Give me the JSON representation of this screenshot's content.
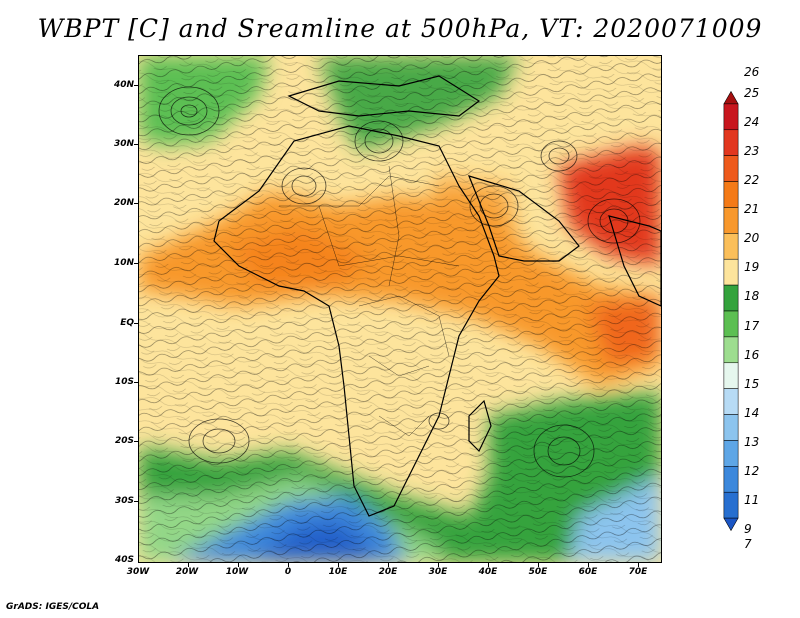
{
  "title": "WBPT [C] and Sreamline at 500hPa, VT: 2020071009",
  "footer": "GrADS: IGES/COLA",
  "lat_labels": [
    "40N",
    "30N",
    "20N",
    "10N",
    "EQ",
    "10S",
    "20S",
    "30S",
    "40S"
  ],
  "lon_labels": [
    "30W",
    "20W",
    "10W",
    "0",
    "10E",
    "20E",
    "30E",
    "40E",
    "50E",
    "60E",
    "70E"
  ],
  "colorbar": {
    "labels": [
      "26",
      "25",
      "24",
      "23",
      "22",
      "21",
      "20",
      "19",
      "18",
      "17",
      "16",
      "15",
      "14",
      "13",
      "12",
      "11",
      "9",
      "7"
    ],
    "colors": [
      "#a50f0f",
      "#c8161e",
      "#e2371f",
      "#ee5a1c",
      "#f47a17",
      "#f8982c",
      "#fbbf5a",
      "#fde49c",
      "#34a33d",
      "#5cbf52",
      "#9ddd8f",
      "#e6f7ee",
      "#b7dbf5",
      "#8cc4ee",
      "#5ea6e6",
      "#3c88dc",
      "#276fd0",
      "#1a55c4"
    ]
  },
  "map": {
    "fields": [
      {
        "name": "green-north-west",
        "color": "#5cbf52"
      },
      {
        "name": "orange-band",
        "color": "#f4a043"
      },
      {
        "name": "red-arabia",
        "color": "#e2371f"
      },
      {
        "name": "green-south",
        "color": "#34a33d"
      },
      {
        "name": "blue-south",
        "color": "#3c88dc"
      }
    ]
  }
}
